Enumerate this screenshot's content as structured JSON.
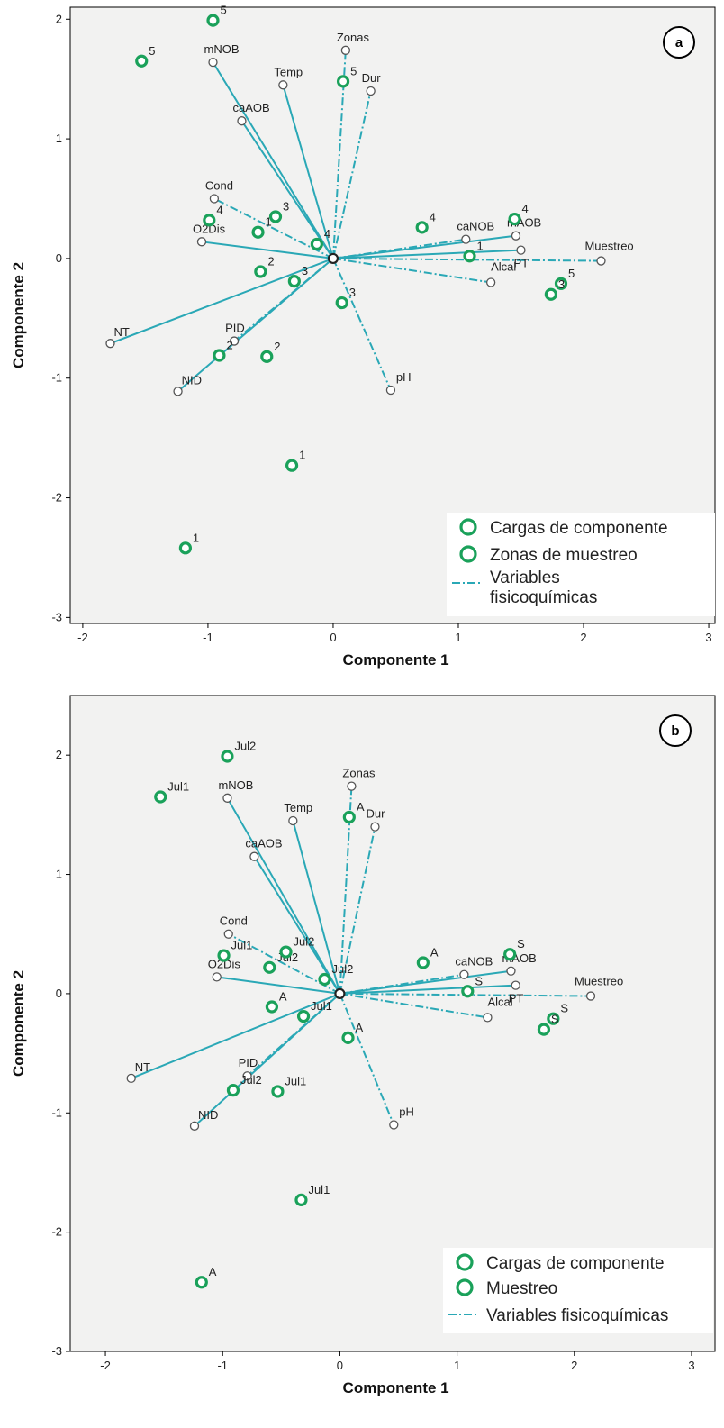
{
  "colors": {
    "plot_bg": "#f2f2f1",
    "vector_line": "#2aa8b6",
    "sample_marker": "#1aa15a",
    "variable_marker": "#555555",
    "origin_marker": "#222222"
  },
  "chart_data": [
    {
      "type": "scatter",
      "panel": "a",
      "xlabel": "Componente 1",
      "ylabel": "Componente 2",
      "xlim": [
        -2.1,
        3.05
      ],
      "ylim": [
        -3.05,
        2.1
      ],
      "xticks": [
        -2,
        -1,
        0,
        1,
        2,
        3
      ],
      "yticks": [
        -3,
        -2,
        -1,
        0,
        1,
        2
      ],
      "grid": false,
      "legend_position": "bottom-right",
      "legend": [
        "Cargas de componente",
        "Zonas de muestreo",
        "Variables fisicoquímicas"
      ],
      "variables": [
        {
          "name": "mNOB",
          "x": -0.96,
          "y": 1.64
        },
        {
          "name": "Zonas",
          "x": 0.1,
          "y": 1.74
        },
        {
          "name": "Temp",
          "x": -0.4,
          "y": 1.45
        },
        {
          "name": "Dur",
          "x": 0.3,
          "y": 1.4
        },
        {
          "name": "caAOB",
          "x": -0.73,
          "y": 1.15
        },
        {
          "name": "Cond",
          "x": -0.95,
          "y": 0.5
        },
        {
          "name": "O2Dis",
          "x": -1.05,
          "y": 0.14
        },
        {
          "name": "caNOB",
          "x": 1.06,
          "y": 0.16
        },
        {
          "name": "mAOB",
          "x": 1.46,
          "y": 0.19
        },
        {
          "name": "Alcal",
          "x": 1.26,
          "y": -0.2
        },
        {
          "name": "PT",
          "x": 1.5,
          "y": 0.07
        },
        {
          "name": "Muestreo",
          "x": 2.14,
          "y": -0.02
        },
        {
          "name": "NT",
          "x": -1.78,
          "y": -0.71
        },
        {
          "name": "PID",
          "x": -0.79,
          "y": -0.69
        },
        {
          "name": "NID",
          "x": -1.24,
          "y": -1.11
        },
        {
          "name": "pH",
          "x": 0.46,
          "y": -1.1
        }
      ],
      "samples": [
        {
          "label": "5",
          "x": -0.96,
          "y": 1.99
        },
        {
          "label": "5",
          "x": -1.53,
          "y": 1.65
        },
        {
          "label": "5",
          "x": 0.08,
          "y": 1.48
        },
        {
          "label": "4",
          "x": -0.99,
          "y": 0.32
        },
        {
          "label": "1",
          "x": -0.6,
          "y": 0.22
        },
        {
          "label": "3",
          "x": -0.46,
          "y": 0.35
        },
        {
          "label": "4",
          "x": -0.13,
          "y": 0.12
        },
        {
          "label": "4",
          "x": 0.71,
          "y": 0.26
        },
        {
          "label": "4",
          "x": 1.45,
          "y": 0.33
        },
        {
          "label": "1",
          "x": 1.09,
          "y": 0.02
        },
        {
          "label": "2",
          "x": -0.58,
          "y": -0.11
        },
        {
          "label": "3",
          "x": -0.31,
          "y": -0.19
        },
        {
          "label": "3",
          "x": 0.07,
          "y": -0.37
        },
        {
          "label": "5",
          "x": 1.82,
          "y": -0.21
        },
        {
          "label": "3",
          "x": 1.74,
          "y": -0.3
        },
        {
          "label": "2",
          "x": -0.91,
          "y": -0.81
        },
        {
          "label": "2",
          "x": -0.53,
          "y": -0.82
        },
        {
          "label": "1",
          "x": -0.33,
          "y": -1.73
        },
        {
          "label": "1",
          "x": -1.18,
          "y": -2.42
        }
      ]
    },
    {
      "type": "scatter",
      "panel": "b",
      "xlabel": "Componente 1",
      "ylabel": "Componente 2",
      "xlim": [
        -2.3,
        3.2
      ],
      "ylim": [
        -3.0,
        2.5
      ],
      "xticks": [
        -2,
        -1,
        0,
        1,
        2,
        3
      ],
      "yticks": [
        -3,
        -2,
        -1,
        0,
        1,
        2
      ],
      "grid": false,
      "legend_position": "bottom-right",
      "legend": [
        "Cargas de componente",
        "Muestreo",
        "Variables fisicoquímicas"
      ],
      "variables": [
        {
          "name": "mNOB",
          "x": -0.96,
          "y": 1.64
        },
        {
          "name": "Zonas",
          "x": 0.1,
          "y": 1.74
        },
        {
          "name": "Temp",
          "x": -0.4,
          "y": 1.45
        },
        {
          "name": "Dur",
          "x": 0.3,
          "y": 1.4
        },
        {
          "name": "caAOB",
          "x": -0.73,
          "y": 1.15
        },
        {
          "name": "Cond",
          "x": -0.95,
          "y": 0.5
        },
        {
          "name": "O2Dis",
          "x": -1.05,
          "y": 0.14
        },
        {
          "name": "caNOB",
          "x": 1.06,
          "y": 0.16
        },
        {
          "name": "mAOB",
          "x": 1.46,
          "y": 0.19
        },
        {
          "name": "Alcal",
          "x": 1.26,
          "y": -0.2
        },
        {
          "name": "PT",
          "x": 1.5,
          "y": 0.07
        },
        {
          "name": "Muestreo",
          "x": 2.14,
          "y": -0.02
        },
        {
          "name": "NT",
          "x": -1.78,
          "y": -0.71
        },
        {
          "name": "PID",
          "x": -0.79,
          "y": -0.69
        },
        {
          "name": "NID",
          "x": -1.24,
          "y": -1.11
        },
        {
          "name": "pH",
          "x": 0.46,
          "y": -1.1
        }
      ],
      "samples": [
        {
          "label": "Jul2",
          "x": -0.96,
          "y": 1.99
        },
        {
          "label": "Jul1",
          "x": -1.53,
          "y": 1.65
        },
        {
          "label": "A",
          "x": 0.08,
          "y": 1.48
        },
        {
          "label": "Jul1",
          "x": -0.99,
          "y": 0.32
        },
        {
          "label": "Jul2",
          "x": -0.6,
          "y": 0.22
        },
        {
          "label": "Jul2",
          "x": -0.46,
          "y": 0.35
        },
        {
          "label": "Jul2",
          "x": -0.13,
          "y": 0.12
        },
        {
          "label": "A",
          "x": 0.71,
          "y": 0.26
        },
        {
          "label": "S",
          "x": 1.45,
          "y": 0.33
        },
        {
          "label": "S",
          "x": 1.09,
          "y": 0.02
        },
        {
          "label": "A",
          "x": -0.58,
          "y": -0.11
        },
        {
          "label": "Jul1",
          "x": -0.31,
          "y": -0.19
        },
        {
          "label": "A",
          "x": 0.07,
          "y": -0.37
        },
        {
          "label": "S",
          "x": 1.82,
          "y": -0.21
        },
        {
          "label": "S",
          "x": 1.74,
          "y": -0.3
        },
        {
          "label": "Jul2",
          "x": -0.91,
          "y": -0.81
        },
        {
          "label": "Jul1",
          "x": -0.53,
          "y": -0.82
        },
        {
          "label": "Jul1",
          "x": -0.33,
          "y": -1.73
        },
        {
          "label": "A",
          "x": -1.18,
          "y": -2.42
        }
      ]
    }
  ]
}
